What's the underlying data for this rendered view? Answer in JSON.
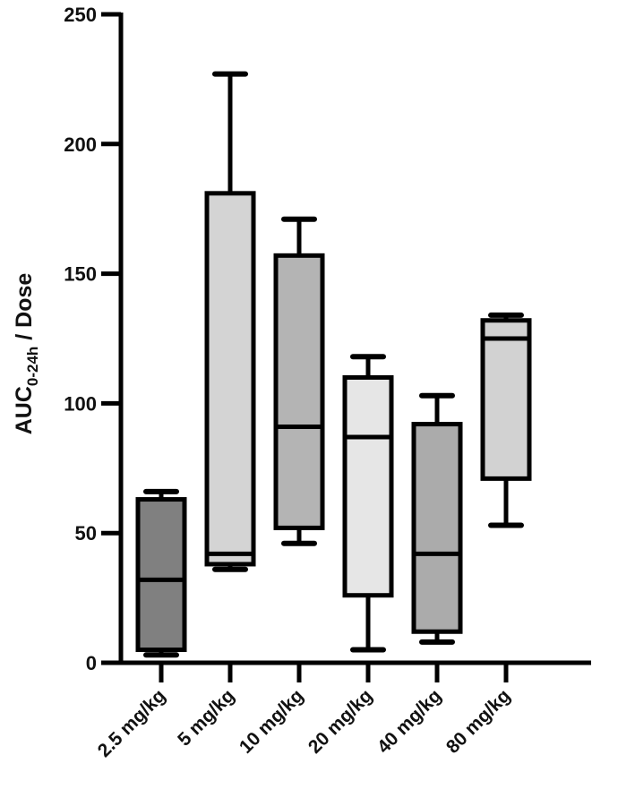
{
  "chart_data": {
    "type": "box",
    "title": "",
    "xlabel": "",
    "ylabel": "AUC0-24h / Dose",
    "ylabel_parts": {
      "main": "AUC",
      "subscript": "0-24h",
      "suffix": " / Dose"
    },
    "ylim": [
      0,
      250
    ],
    "yticks": [
      0,
      50,
      100,
      150,
      200,
      250
    ],
    "grid": false,
    "legend": null,
    "categories": [
      "2.5 mg/kg",
      "5 mg/kg",
      "10 mg/kg",
      "20 mg/kg",
      "40 mg/kg",
      "80 mg/kg"
    ],
    "boxes": [
      {
        "category": "2.5 mg/kg",
        "min": 3,
        "q1": 5,
        "median": 32,
        "q3": 63,
        "max": 66,
        "fill": "#808080"
      },
      {
        "category": "5 mg/kg",
        "min": 36,
        "q1": 38,
        "median": 42,
        "q3": 181,
        "max": 227,
        "fill": "#d4d4d4"
      },
      {
        "category": "10 mg/kg",
        "min": 46,
        "q1": 52,
        "median": 91,
        "q3": 157,
        "max": 171,
        "fill": "#b4b4b4"
      },
      {
        "category": "20 mg/kg",
        "min": 5,
        "q1": 26,
        "median": 87,
        "q3": 110,
        "max": 118,
        "fill": "#e6e6e6"
      },
      {
        "category": "40 mg/kg",
        "min": 8,
        "q1": 12,
        "median": 42,
        "q3": 92,
        "max": 103,
        "fill": "#ababab"
      },
      {
        "category": "80 mg/kg",
        "min": 53,
        "q1": 71,
        "median": 125,
        "q3": 132,
        "max": 134,
        "fill": "#d2d2d2"
      }
    ]
  }
}
